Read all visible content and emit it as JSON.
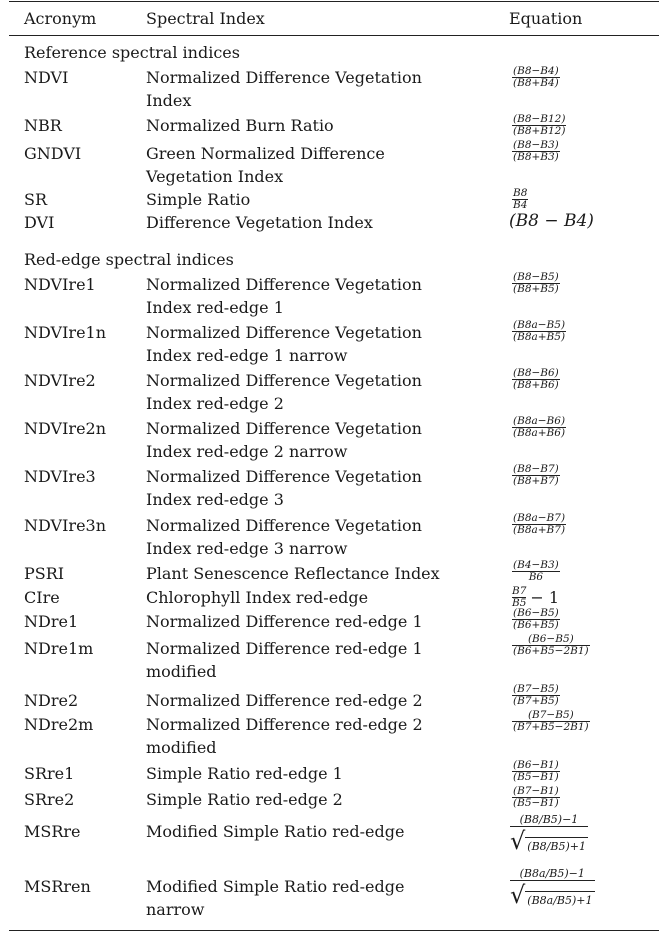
{
  "header": {
    "acronym": "Acronym",
    "index": "Spectral Index",
    "equation": "Equation"
  },
  "sections": {
    "reference": "Reference spectral indices",
    "rededge": "Red-edge spectral indices"
  },
  "rows": [
    {
      "acr": "NDVI",
      "name": "Normalized Difference Vegetation Index",
      "num": "(B8−B4)",
      "den": "(B8+B4)"
    },
    {
      "acr": "NBR",
      "name": "Normalized Burn Ratio",
      "num": "(B8−B12)",
      "den": "(B8+B12)"
    },
    {
      "acr": "GNDVI",
      "name": "Green Normalized Difference Vegetation Index",
      "num": "(B8−B3)",
      "den": "(B8+B3)"
    },
    {
      "acr": "SR",
      "name": "Simple Ratio",
      "num": "B8",
      "den": "B4"
    },
    {
      "acr": "DVI",
      "name": "Difference Vegetation Index",
      "eq": "(B8 − B4)"
    },
    {
      "acr": "NDVIre1",
      "name": "Normalized Difference Vegetation Index red-edge 1",
      "num": "(B8−B5)",
      "den": "(B8+B5)"
    },
    {
      "acr": "NDVIre1n",
      "name": "Normalized Difference Vegetation Index red-edge 1 narrow",
      "num": "(B8a−B5)",
      "den": "(B8a+B5)"
    },
    {
      "acr": "NDVIre2",
      "name": "Normalized Difference Vegetation Index red-edge 2",
      "num": "(B8−B6)",
      "den": "(B8+B6)"
    },
    {
      "acr": "NDVIre2n",
      "name": "Normalized Difference Vegetation Index red-edge 2 narrow",
      "num": "(B8a−B6)",
      "den": "(B8a+B6)"
    },
    {
      "acr": "NDVIre3",
      "name": "Normalized Difference Vegetation Index red-edge 3",
      "num": "(B8−B7)",
      "den": "(B8+B7)"
    },
    {
      "acr": "NDVIre3n",
      "name": "Normalized Difference Vegetation Index red-edge 3 narrow",
      "num": "(B8a−B7)",
      "den": "(B8a+B7)"
    },
    {
      "acr": "PSRI",
      "name": "Plant Senescence Reflectance Index",
      "num": "(B4−B3)",
      "den": "B6"
    },
    {
      "acr": "CIre",
      "name": "Chlorophyll Index red-edge",
      "num": "B7",
      "den": "B5",
      "tail": "− 1"
    },
    {
      "acr": "NDre1",
      "name": "Normalized Difference red-edge 1",
      "num": "(B6−B5)",
      "den": "(B6+B5)"
    },
    {
      "acr": "NDre1m",
      "name": "Normalized Difference red-edge 1 modified",
      "num": "(B6−B5)",
      "den": "(B6+B5−2B1)"
    },
    {
      "acr": "NDre2",
      "name": "Normalized Difference red-edge 2",
      "num": "(B7−B5)",
      "den": "(B7+B5)"
    },
    {
      "acr": "NDre2m",
      "name": "Normalized Difference red-edge 2 modified",
      "num": "(B7−B5)",
      "den": "(B7+B5−2B1)"
    },
    {
      "acr": "SRre1",
      "name": "Simple Ratio red-edge 1",
      "num": "(B6−B1)",
      "den": "(B5−B1)"
    },
    {
      "acr": "SRre2",
      "name": "Simple Ratio red-edge 2",
      "num": "(B7−B1)",
      "den": "(B5−B1)"
    },
    {
      "acr": "MSRre",
      "name": "Modified Simple Ratio red-edge",
      "num": "(B8/B5)−1",
      "rad": "(B8/B5)+1"
    },
    {
      "acr": "MSRren",
      "name": "Modified Simple Ratio red-edge narrow",
      "num": "(B8a/B5)−1",
      "rad": "(B8a/B5)+1"
    }
  ]
}
